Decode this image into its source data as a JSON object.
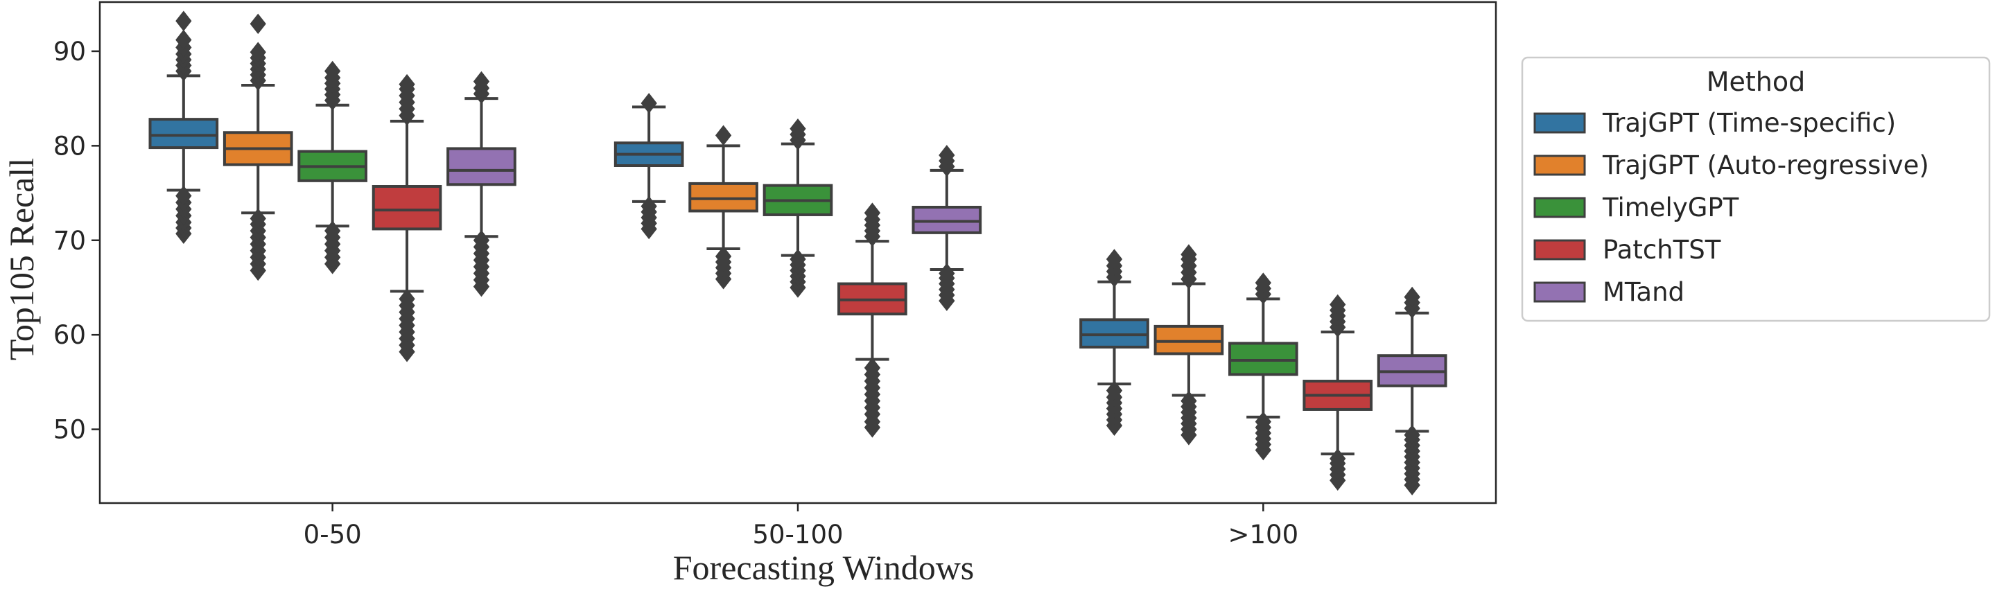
{
  "chart_data": {
    "type": "box",
    "xlabel": "Forecasting Windows",
    "ylabel": "Top105 Recall",
    "categories": [
      "0-50",
      "50-100",
      ">100"
    ],
    "ylim": [
      42.2,
      95.2
    ],
    "yticks": [
      50,
      60,
      70,
      80,
      90
    ],
    "grid": false,
    "legend": {
      "title": "Method",
      "placement": "outside-right"
    },
    "series": [
      {
        "name": "TrajGPT (Time-specific)",
        "color": "#3274a1",
        "boxes": [
          {
            "whislo": 75.3,
            "q1": 79.8,
            "med": 81.1,
            "q3": 82.8,
            "whishi": 87.4,
            "fliers": [
              70.7,
              71.3,
              71.9,
              72.6,
              73.3,
              74.0,
              74.7,
              87.9,
              88.5,
              89.1,
              89.7,
              90.4,
              91.2,
              93.2
            ]
          },
          {
            "whislo": 74.1,
            "q1": 77.9,
            "med": 79.1,
            "q3": 80.3,
            "whishi": 84.1,
            "fliers": [
              71.2,
              71.8,
              72.4,
              73.0,
              73.6,
              84.5
            ]
          },
          {
            "whislo": 54.8,
            "q1": 58.7,
            "med": 60.0,
            "q3": 61.6,
            "whishi": 65.6,
            "fliers": [
              50.4,
              51.0,
              51.6,
              52.2,
              52.8,
              53.4,
              54.1,
              66.1,
              66.7,
              67.3,
              68.0
            ]
          }
        ]
      },
      {
        "name": "TrajGPT (Auto-regressive)",
        "color": "#e1812c",
        "boxes": [
          {
            "whislo": 72.9,
            "q1": 78.0,
            "med": 79.7,
            "q3": 81.4,
            "whishi": 86.4,
            "fliers": [
              66.8,
              67.5,
              68.2,
              68.9,
              69.6,
              70.3,
              71.0,
              71.7,
              72.3,
              86.9,
              87.5,
              88.1,
              88.7,
              89.3,
              89.9,
              92.9
            ]
          },
          {
            "whislo": 69.1,
            "q1": 73.1,
            "med": 74.4,
            "q3": 76.0,
            "whishi": 80.0,
            "fliers": [
              65.9,
              66.5,
              67.1,
              67.7,
              68.3,
              81.1
            ]
          },
          {
            "whislo": 53.6,
            "q1": 58.0,
            "med": 59.3,
            "q3": 60.9,
            "whishi": 65.4,
            "fliers": [
              49.4,
              50.0,
              50.6,
              51.2,
              51.8,
              52.4,
              53.0,
              65.9,
              66.6,
              67.3,
              68.0,
              68.5
            ]
          }
        ]
      },
      {
        "name": "TimelyGPT",
        "color": "#3a923a",
        "boxes": [
          {
            "whislo": 71.5,
            "q1": 76.3,
            "med": 77.8,
            "q3": 79.4,
            "whishi": 84.3,
            "fliers": [
              67.5,
              68.2,
              68.9,
              69.6,
              70.3,
              71.0,
              84.8,
              85.4,
              86.0,
              86.6,
              87.2,
              87.9
            ]
          },
          {
            "whislo": 68.4,
            "q1": 72.7,
            "med": 74.2,
            "q3": 75.8,
            "whishi": 80.2,
            "fliers": [
              65.0,
              65.6,
              66.2,
              66.8,
              67.4,
              68.0,
              80.6,
              81.2,
              81.8
            ]
          },
          {
            "whislo": 51.3,
            "q1": 55.8,
            "med": 57.3,
            "q3": 59.1,
            "whishi": 63.8,
            "fliers": [
              47.8,
              48.4,
              49.0,
              49.6,
              50.2,
              50.8,
              64.3,
              64.9,
              65.5
            ]
          }
        ]
      },
      {
        "name": "PatchTST",
        "color": "#c03d3e",
        "boxes": [
          {
            "whislo": 64.6,
            "q1": 71.2,
            "med": 73.2,
            "q3": 75.7,
            "whishi": 82.6,
            "fliers": [
              58.2,
              58.9,
              59.6,
              60.3,
              61.0,
              61.7,
              62.4,
              63.1,
              63.8,
              83.2,
              83.9,
              84.6,
              85.3,
              86.0,
              86.5
            ]
          },
          {
            "whislo": 57.4,
            "q1": 62.2,
            "med": 63.7,
            "q3": 65.4,
            "whishi": 69.9,
            "fliers": [
              50.2,
              50.8,
              51.6,
              52.3,
              53.0,
              53.7,
              54.4,
              55.1,
              55.8,
              56.5,
              70.4,
              71.0,
              71.6,
              72.2,
              72.9
            ]
          },
          {
            "whislo": 47.4,
            "q1": 52.1,
            "med": 53.6,
            "q3": 55.1,
            "whishi": 60.3,
            "fliers": [
              44.6,
              45.2,
              45.8,
              46.4,
              46.9,
              60.8,
              61.4,
              62.0,
              62.6,
              63.2
            ]
          }
        ]
      },
      {
        "name": "MTand",
        "color": "#9372b2",
        "boxes": [
          {
            "whislo": 70.4,
            "q1": 75.9,
            "med": 77.4,
            "q3": 79.7,
            "whishi": 85.0,
            "fliers": [
              65.1,
              65.8,
              66.5,
              67.2,
              67.9,
              68.6,
              69.3,
              70.0,
              85.5,
              86.1,
              86.8
            ]
          },
          {
            "whislo": 66.9,
            "q1": 70.8,
            "med": 72.0,
            "q3": 73.5,
            "whishi": 77.4,
            "fliers": [
              63.6,
              64.2,
              64.8,
              65.4,
              66.0,
              66.5,
              77.8,
              78.4,
              79.0
            ]
          },
          {
            "whislo": 49.8,
            "q1": 54.6,
            "med": 56.1,
            "q3": 57.8,
            "whishi": 62.3,
            "fliers": [
              44.1,
              44.7,
              45.3,
              45.9,
              46.5,
              47.1,
              47.7,
              48.3,
              48.9,
              49.4,
              62.8,
              63.4,
              64.0
            ]
          }
        ]
      }
    ]
  }
}
